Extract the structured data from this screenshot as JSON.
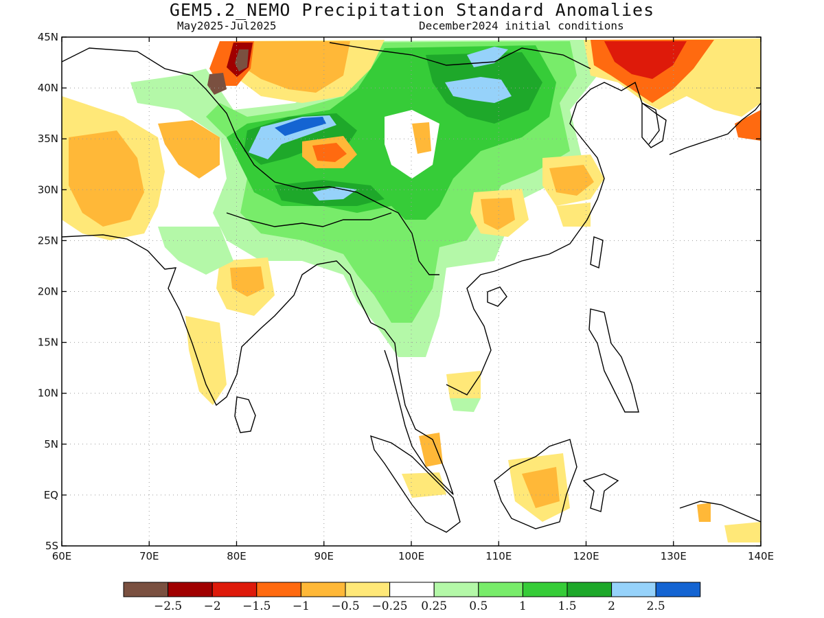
{
  "header": {
    "title": "GEM5.2_NEMO Precipitation Standard Anomalies",
    "period": "May2025-Jul2025",
    "init": "December2024 initial conditions"
  },
  "axes": {
    "lat_labels": [
      "45N",
      "40N",
      "35N",
      "30N",
      "25N",
      "20N",
      "15N",
      "10N",
      "5N",
      "EQ",
      "5S"
    ],
    "lat_values": [
      45,
      40,
      35,
      30,
      25,
      20,
      15,
      10,
      5,
      0,
      -5
    ],
    "lon_labels": [
      "60E",
      "70E",
      "80E",
      "90E",
      "100E",
      "110E",
      "120E",
      "130E",
      "140E"
    ],
    "lon_values": [
      60,
      70,
      80,
      90,
      100,
      110,
      120,
      130,
      140
    ],
    "lon_range": [
      60,
      140
    ],
    "lat_range": [
      -5,
      45
    ],
    "grid": "dotted"
  },
  "colorbar": {
    "colors": [
      "#7a5040",
      "#a00000",
      "#de1a0a",
      "#ff6a10",
      "#ffb838",
      "#ffe878",
      "#ffffff",
      "#b4f8a8",
      "#78ec6a",
      "#36cc38",
      "#1ea82a",
      "#96d2fa",
      "#1464d2"
    ],
    "labels": [
      "-2.5",
      "-2",
      "-1.5",
      "-1",
      "-0.5",
      "-0.25",
      "0.25",
      "0.5",
      "1",
      "1.5",
      "2",
      "2.5"
    ]
  },
  "legend_info": {
    "colors": [
      "#7a5040",
      "#a00000",
      "#de1a0a",
      "#ff6a10",
      "#ffb838",
      "#ffe878",
      "#ffffff",
      "#b4f8a8",
      "#78ec6a",
      "#36cc38",
      "#1ea82a",
      "#96d2fa",
      "#1464d2"
    ]
  }
}
